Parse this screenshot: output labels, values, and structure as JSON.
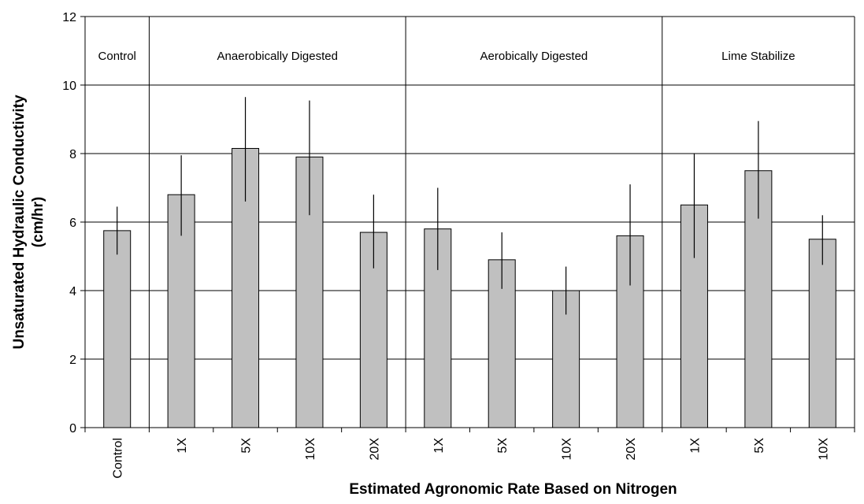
{
  "chart_data": {
    "type": "bar",
    "ylabel_line1": "Unsaturated Hydraulic Conductivity",
    "ylabel_line2": "(cm/hr)",
    "xlabel": "Estimated Agronomic Rate Based on Nitrogen",
    "ylim": [
      0,
      12
    ],
    "yticks": [
      0,
      2,
      4,
      6,
      8,
      10,
      12
    ],
    "grid": true,
    "categories": [
      "Control",
      "1X",
      "5X",
      "10X",
      "20X",
      "1X",
      "5X",
      "10X",
      "20X",
      "1X",
      "5X",
      "10X"
    ],
    "values": [
      5.75,
      6.8,
      8.15,
      7.9,
      5.7,
      5.8,
      4.9,
      4.0,
      5.6,
      6.5,
      7.5,
      5.5
    ],
    "error_low": [
      5.05,
      5.6,
      6.6,
      6.2,
      4.65,
      4.6,
      4.05,
      3.3,
      4.15,
      4.95,
      6.1,
      4.75
    ],
    "error_high": [
      6.45,
      7.95,
      9.65,
      9.55,
      6.8,
      7.0,
      5.7,
      4.7,
      7.1,
      8.0,
      8.95,
      6.2
    ],
    "groups": [
      {
        "label": "Control",
        "count": 1
      },
      {
        "label": "Anaerobically Digested",
        "count": 4
      },
      {
        "label": "Aerobically Digested",
        "count": 4
      },
      {
        "label": "Lime Stabilize",
        "count": 3
      }
    ],
    "colors": {
      "bar": "#c0c0c0",
      "bar_edge": "#000000",
      "grid": "#000000"
    }
  }
}
